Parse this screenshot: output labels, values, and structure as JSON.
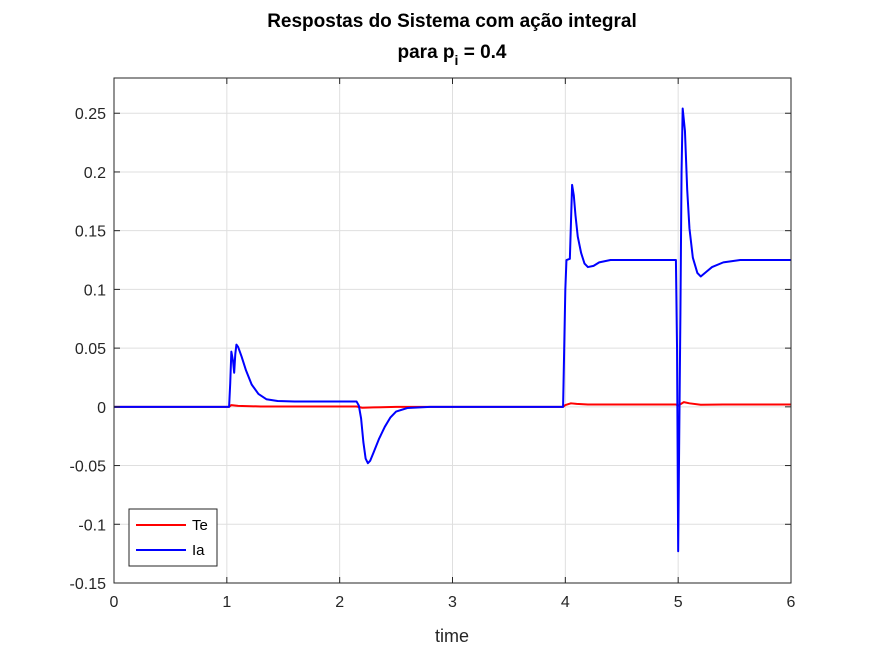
{
  "chart_data": {
    "type": "line",
    "title_line1": "Respostas do Sistema com ação integral",
    "title_line2_prefix": "para p",
    "title_line2_subscript": "i",
    "title_line2_suffix": " = 0.4",
    "xlabel": "time",
    "ylabel": "",
    "xlim": [
      0,
      6
    ],
    "ylim": [
      -0.15,
      0.28
    ],
    "xticks": [
      0,
      1,
      2,
      3,
      4,
      5,
      6
    ],
    "xtick_labels": [
      "0",
      "1",
      "2",
      "3",
      "4",
      "5",
      "6"
    ],
    "yticks": [
      -0.15,
      -0.1,
      -0.05,
      0,
      0.05,
      0.1,
      0.15,
      0.2,
      0.25
    ],
    "ytick_labels": [
      "-0.15",
      "-0.1",
      "-0.05",
      "0",
      "0.05",
      "0.1",
      "0.15",
      "0.2",
      "0.25"
    ],
    "grid": true,
    "legend_position": "bottom-left",
    "series": [
      {
        "name": "Te",
        "color": "#ff0000",
        "points": [
          [
            0,
            0
          ],
          [
            1.02,
            0
          ],
          [
            1.04,
            0.0015
          ],
          [
            1.1,
            0.0008
          ],
          [
            1.3,
            0.0003
          ],
          [
            2.0,
            0.0003
          ],
          [
            2.15,
            0.0003
          ],
          [
            2.2,
            -0.0008
          ],
          [
            2.3,
            -0.0005
          ],
          [
            2.5,
            0
          ],
          [
            3.0,
            0
          ],
          [
            3.98,
            0
          ],
          [
            4.0,
            0.0015
          ],
          [
            4.05,
            0.003
          ],
          [
            4.1,
            0.0025
          ],
          [
            4.2,
            0.002
          ],
          [
            4.5,
            0.002
          ],
          [
            4.98,
            0.002
          ],
          [
            5.0,
            0.001
          ],
          [
            5.05,
            0.004
          ],
          [
            5.1,
            0.003
          ],
          [
            5.2,
            0.0018
          ],
          [
            5.4,
            0.002
          ],
          [
            6.0,
            0.002
          ]
        ]
      },
      {
        "name": "Ia",
        "color": "#0000ff",
        "points": [
          [
            0,
            0
          ],
          [
            1.02,
            0
          ],
          [
            1.03,
            0.02
          ],
          [
            1.04,
            0.047
          ],
          [
            1.055,
            0.039
          ],
          [
            1.065,
            0.029
          ],
          [
            1.075,
            0.045
          ],
          [
            1.085,
            0.053
          ],
          [
            1.1,
            0.051
          ],
          [
            1.13,
            0.043
          ],
          [
            1.17,
            0.031
          ],
          [
            1.22,
            0.019
          ],
          [
            1.28,
            0.011
          ],
          [
            1.35,
            0.0065
          ],
          [
            1.45,
            0.005
          ],
          [
            1.6,
            0.0045
          ],
          [
            1.8,
            0.0045
          ],
          [
            2.0,
            0.0045
          ],
          [
            2.15,
            0.0045
          ],
          [
            2.17,
            0.001
          ],
          [
            2.19,
            -0.01
          ],
          [
            2.21,
            -0.03
          ],
          [
            2.23,
            -0.044
          ],
          [
            2.25,
            -0.048
          ],
          [
            2.27,
            -0.046
          ],
          [
            2.3,
            -0.039
          ],
          [
            2.35,
            -0.027
          ],
          [
            2.4,
            -0.017
          ],
          [
            2.45,
            -0.009
          ],
          [
            2.5,
            -0.004
          ],
          [
            2.6,
            -0.001
          ],
          [
            2.8,
            0
          ],
          [
            3.5,
            0
          ],
          [
            3.98,
            0
          ],
          [
            4.0,
            0.1
          ],
          [
            4.01,
            0.125
          ],
          [
            4.04,
            0.126
          ],
          [
            4.05,
            0.157
          ],
          [
            4.06,
            0.189
          ],
          [
            4.075,
            0.18
          ],
          [
            4.09,
            0.163
          ],
          [
            4.11,
            0.145
          ],
          [
            4.14,
            0.131
          ],
          [
            4.17,
            0.122
          ],
          [
            4.2,
            0.119
          ],
          [
            4.25,
            0.12
          ],
          [
            4.3,
            0.123
          ],
          [
            4.4,
            0.125
          ],
          [
            4.6,
            0.125
          ],
          [
            4.98,
            0.125
          ],
          [
            4.99,
            0.05
          ],
          [
            5.0,
            -0.123
          ],
          [
            5.01,
            -0.02
          ],
          [
            5.02,
            0.08
          ],
          [
            5.03,
            0.2
          ],
          [
            5.04,
            0.254
          ],
          [
            5.06,
            0.235
          ],
          [
            5.08,
            0.185
          ],
          [
            5.1,
            0.152
          ],
          [
            5.13,
            0.127
          ],
          [
            5.17,
            0.114
          ],
          [
            5.2,
            0.111
          ],
          [
            5.25,
            0.115
          ],
          [
            5.3,
            0.119
          ],
          [
            5.4,
            0.123
          ],
          [
            5.55,
            0.125
          ],
          [
            6.0,
            0.125
          ]
        ]
      }
    ]
  }
}
